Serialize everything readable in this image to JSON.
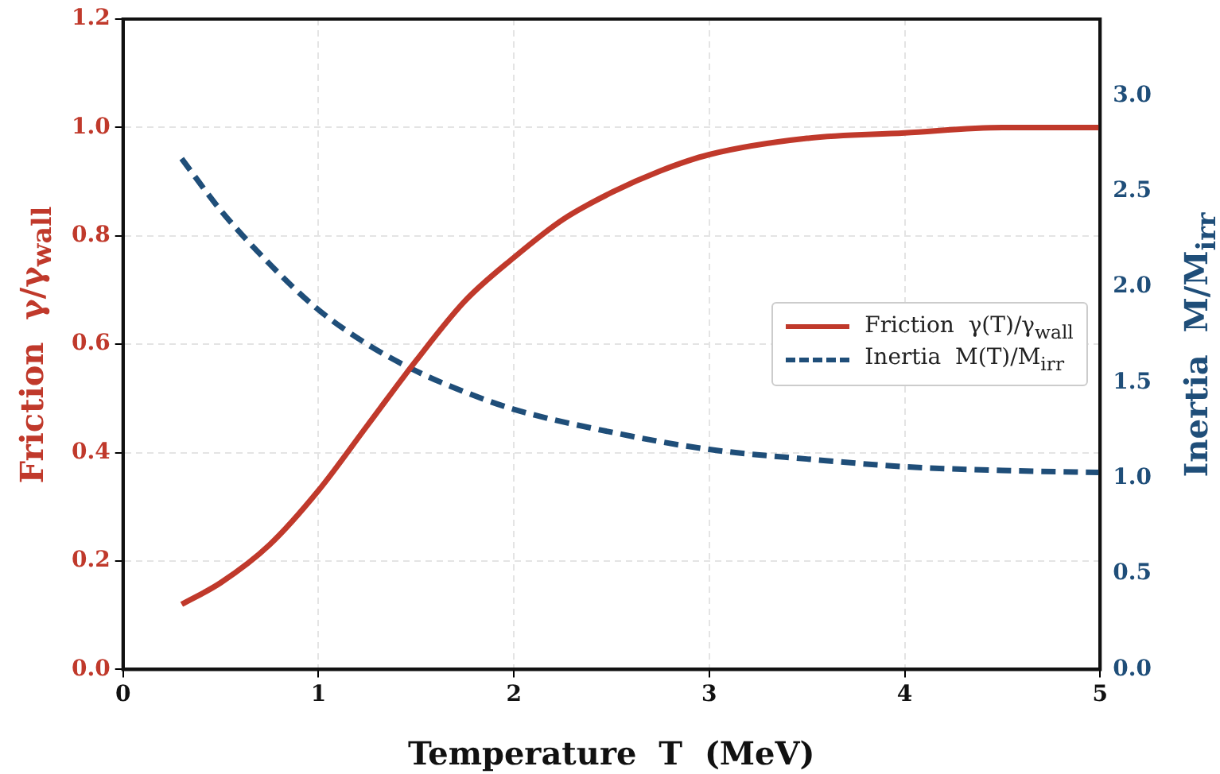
{
  "chart_data": {
    "type": "line",
    "xlabel": "Temperature  T  (MeV)",
    "ylabel": "Friction  γ/γ$_{wall}$",
    "y2label": "Inertia  M/M$_{irr}$",
    "xlim": [
      0,
      5
    ],
    "xticks": [
      0,
      1,
      2,
      3,
      4,
      5
    ],
    "ylim": [
      0,
      1.2
    ],
    "yticks": [
      {
        "value": 0,
        "label": "0.0"
      },
      0.2,
      0.4,
      0.6,
      0.8,
      {
        "value": 1,
        "label": "1.0"
      },
      1.2
    ],
    "y2lim": [
      0,
      3.4
    ],
    "y2ticks": [
      {
        "value": 0,
        "label": "0.0"
      },
      0.5,
      {
        "value": 1,
        "label": "1.0"
      },
      1.5,
      {
        "value": 2,
        "label": "2.0"
      },
      2.5,
      {
        "value": 3,
        "label": "3.0"
      }
    ],
    "grid": true,
    "legend": "right",
    "marker": "none",
    "series": [
      {
        "name": "Friction  γ(T)/γ$_{wall}$",
        "color": "#c0392b",
        "line_style": "solid",
        "x": [
          0.3,
          0.5,
          0.75,
          1.0,
          1.25,
          1.5,
          1.75,
          2.0,
          2.25,
          2.5,
          2.75,
          3.0,
          3.5,
          4.0,
          4.5,
          5.0
        ],
        "values": [
          0.12,
          0.16,
          0.23,
          0.33,
          0.45,
          0.57,
          0.68,
          0.76,
          0.83,
          0.88,
          0.92,
          0.95,
          0.98,
          0.99,
          1.0,
          1.0
        ]
      },
      {
        "name": "Inertia  M(T)/M$_{irr}$",
        "color": "#1f4e79",
        "line_style": "dashed",
        "axis": "y2",
        "x": [
          0.3,
          0.5,
          0.75,
          1.0,
          1.25,
          1.5,
          1.75,
          2.0,
          2.5,
          3.0,
          3.5,
          4.0,
          4.5,
          5.0
        ],
        "values": [
          2.67,
          2.4,
          2.12,
          1.88,
          1.7,
          1.56,
          1.45,
          1.36,
          1.24,
          1.15,
          1.1,
          1.06,
          1.04,
          1.03
        ]
      }
    ]
  }
}
